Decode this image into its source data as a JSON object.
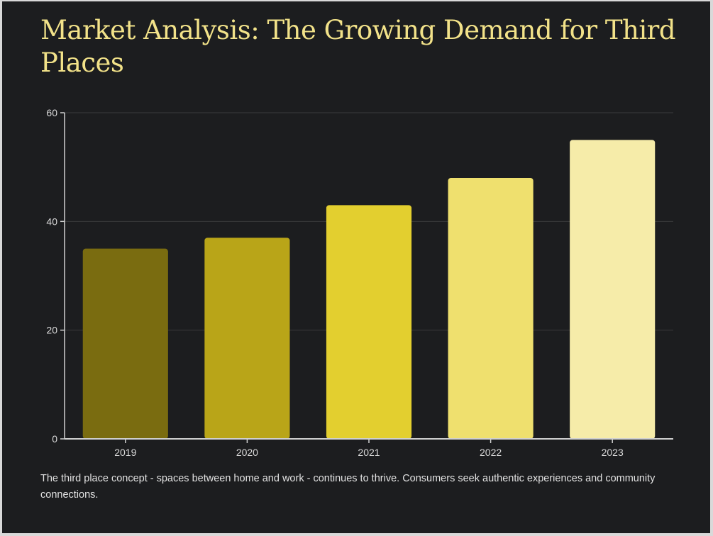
{
  "header": {
    "title": "Market Analysis: The Growing Demand for Third Places"
  },
  "chart_data": {
    "type": "bar",
    "categories": [
      "2019",
      "2020",
      "2021",
      "2022",
      "2023"
    ],
    "values": [
      35,
      37,
      43,
      48,
      55
    ],
    "xlabel": "",
    "ylabel": "",
    "ylim": [
      0,
      60
    ],
    "yticks": [
      0,
      20,
      40,
      60
    ],
    "grid": true,
    "legend": "none",
    "colors": [
      "#7a6c10",
      "#b9a518",
      "#e3cf2f",
      "#efe06e",
      "#f6eca9"
    ]
  },
  "caption": "The third place concept - spaces between home and work - continues to thrive. Consumers seek authentic experiences and community connections.",
  "theme": {
    "background": "#1c1d1f",
    "title_color": "#f2e289",
    "grid_color": "#3a3b3d",
    "axis_color": "#d0d0d0"
  }
}
